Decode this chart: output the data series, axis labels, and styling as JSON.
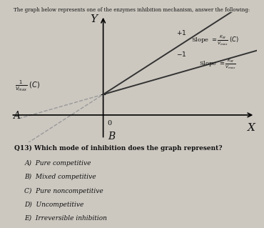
{
  "title": "The graph below represents one of the enzymes inhibition mechanism, answer the following:",
  "xlabel": "X",
  "ylabel": "Y",
  "origin_label": "0",
  "point_A": "A",
  "point_B": "B",
  "line_color": "#333333",
  "dashed_color": "#999999",
  "bg_color": "#ccc8c0",
  "text_color": "#111111",
  "question": "Q13) Which mode of inhibition does the graph represent?",
  "choices": [
    "A)  Pure competitive",
    "B)  Mixed competitive",
    "C)  Pure noncompetitive",
    "D)  Uncompetitive",
    "E)  Irreversible inhibition"
  ],
  "xmin": -2.5,
  "xmax": 4.0,
  "ymin": -0.8,
  "ymax": 3.0,
  "yaxis_x": 0.0,
  "yint": 0.6,
  "slope_steep": 0.72,
  "slope_shallow": 0.32,
  "x_B": 0.0,
  "x_A": -1.7
}
